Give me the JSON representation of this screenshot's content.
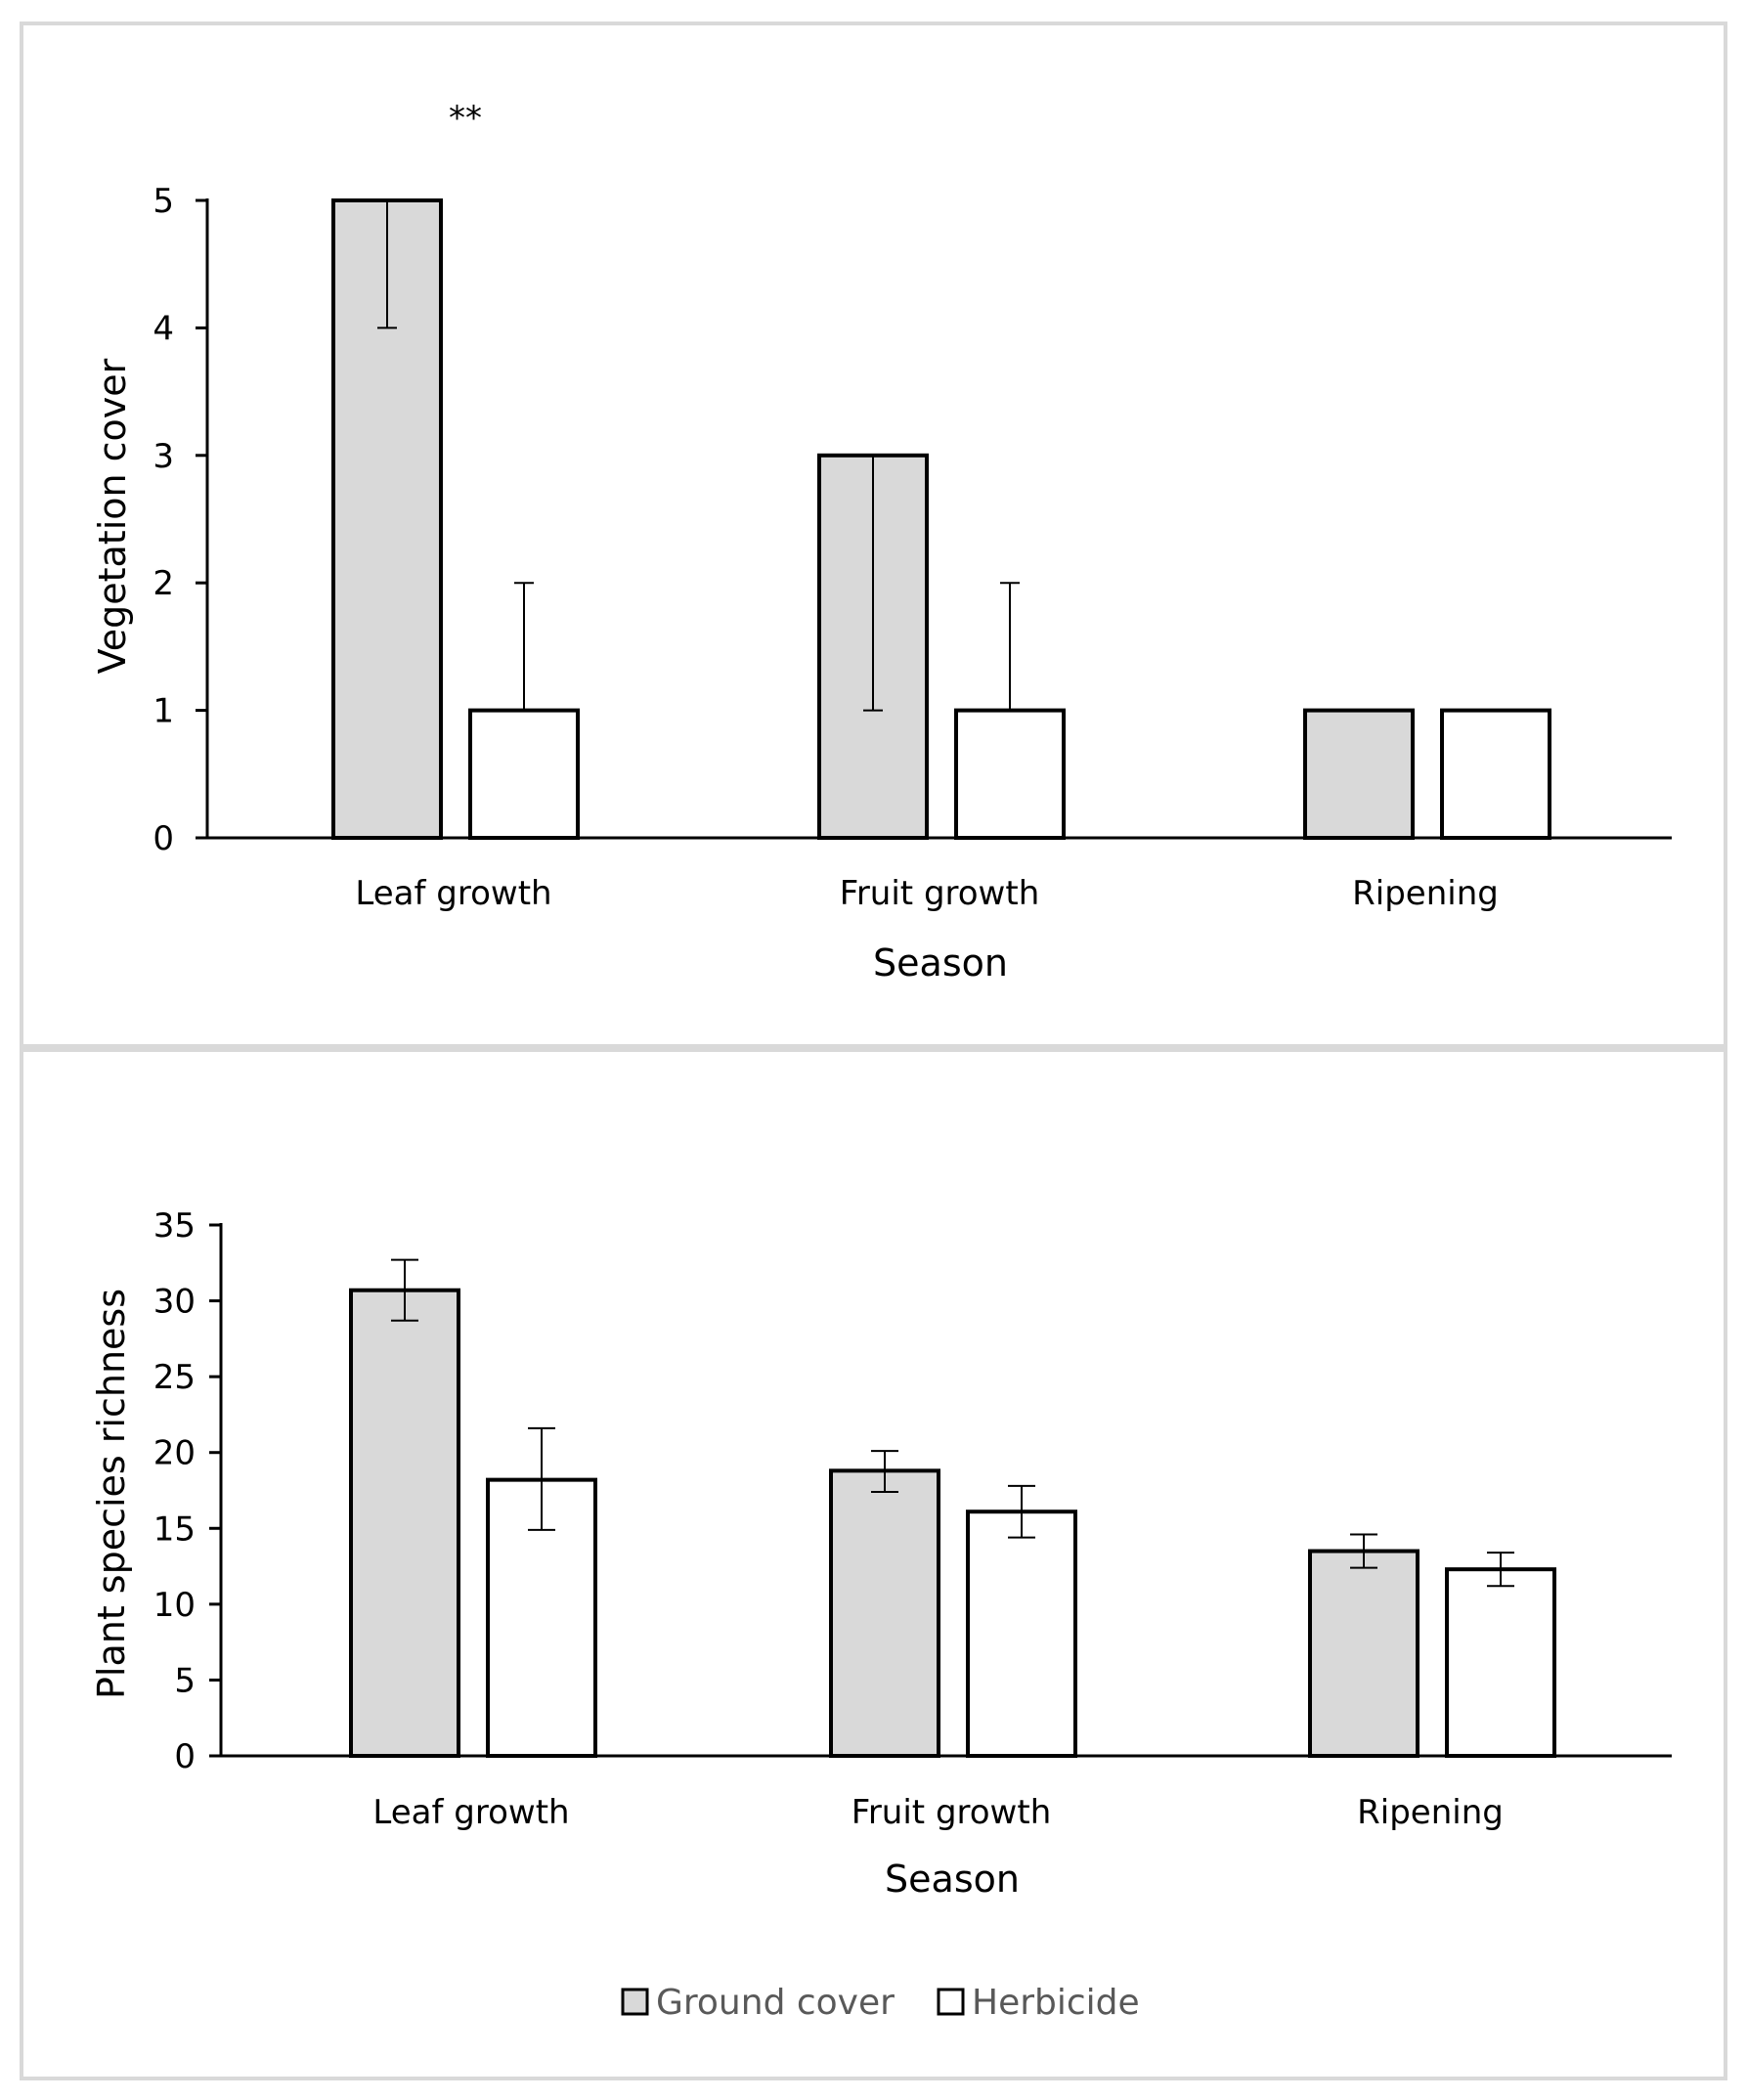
{
  "colors": {
    "ground_cover": "#d9d9d9",
    "herbicide": "#ffffff",
    "frame": "#d9d9d9",
    "axis": "#000000",
    "legend_text": "#595959"
  },
  "legend": {
    "items": [
      {
        "label": "Ground cover",
        "color": "#d9d9d9"
      },
      {
        "label": "Herbicide",
        "color": "#ffffff"
      }
    ]
  },
  "chart_data": [
    {
      "type": "bar",
      "title": "",
      "xlabel": "Season",
      "ylabel": "Vegetation cover",
      "ylim": [
        0,
        5
      ],
      "yticks": [
        "0",
        "1",
        "2",
        "3",
        "4",
        "5"
      ],
      "categories": [
        "Leaf growth",
        "Fruit growth",
        "Ripening"
      ],
      "series": [
        {
          "name": "Ground cover",
          "values": [
            5,
            3,
            1
          ],
          "err_low": [
            4,
            1,
            1
          ],
          "err_high": [
            5,
            3,
            1
          ]
        },
        {
          "name": "Herbicide",
          "values": [
            1,
            1,
            1
          ],
          "err_low": [
            1,
            1,
            1
          ],
          "err_high": [
            2,
            2,
            1
          ]
        }
      ],
      "annotations": [
        {
          "text": "**",
          "category": "Leaf growth"
        }
      ]
    },
    {
      "type": "bar",
      "title": "",
      "xlabel": "Season",
      "ylabel": "Plant species richness",
      "ylim": [
        0,
        35
      ],
      "yticks": [
        "0",
        "5",
        "10",
        "15",
        "20",
        "25",
        "30",
        "35"
      ],
      "categories": [
        "Leaf growth",
        "Fruit growth",
        "Ripening"
      ],
      "series": [
        {
          "name": "Ground cover",
          "values": [
            30.7,
            18.8,
            13.5
          ],
          "err_low": [
            28.7,
            17.4,
            12.4
          ],
          "err_high": [
            32.7,
            20.1,
            14.6
          ]
        },
        {
          "name": "Herbicide",
          "values": [
            18.2,
            16.1,
            12.3
          ],
          "err_low": [
            14.9,
            14.4,
            11.2
          ],
          "err_high": [
            21.6,
            17.8,
            13.4
          ]
        }
      ],
      "annotations": []
    }
  ]
}
